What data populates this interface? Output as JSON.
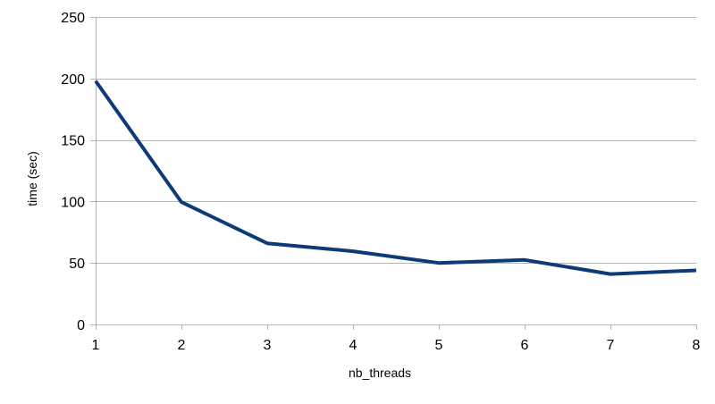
{
  "chart_data": {
    "type": "line",
    "xlabel": "nb_threads",
    "ylabel": "time (sec)",
    "x": [
      1,
      2,
      3,
      4,
      5,
      6,
      7,
      8
    ],
    "ylim": [
      0,
      250
    ],
    "yticks": [
      0,
      50,
      100,
      150,
      200,
      250
    ],
    "grid": true,
    "series": [
      {
        "values": [
          198,
          99.5,
          66,
          59.5,
          50,
          52.5,
          41,
          44
        ],
        "color": "#0e3a78"
      }
    ]
  }
}
